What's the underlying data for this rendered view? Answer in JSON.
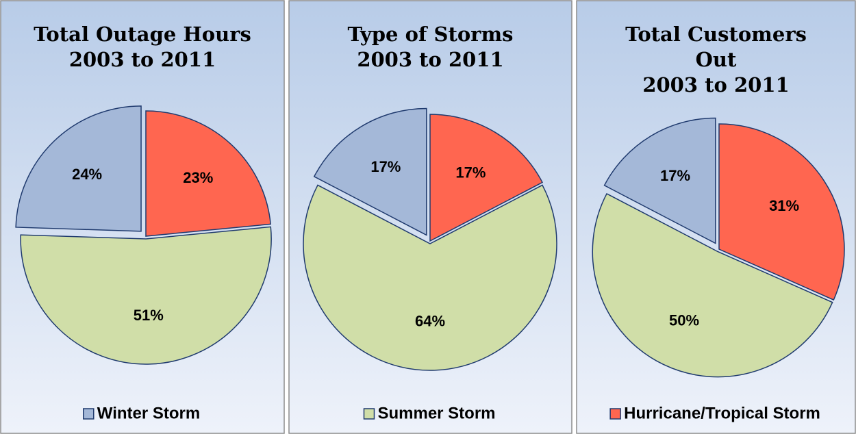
{
  "chart_data": [
    {
      "type": "pie",
      "title": [
        "Total Outage Hours",
        "2003 to 2011"
      ],
      "values": [
        23,
        51,
        24
      ],
      "value_labels": [
        "23%",
        "51%",
        "24%"
      ],
      "colors": [
        "#ff6650",
        "#d0dea8",
        "#a4b8d8"
      ]
    },
    {
      "type": "pie",
      "title": [
        "Type of Storms",
        "2003 to 2011"
      ],
      "values": [
        17,
        64,
        17
      ],
      "value_labels": [
        "17%",
        "64%",
        "17%"
      ],
      "colors": [
        "#ff6650",
        "#d0dea8",
        "#a4b8d8"
      ]
    },
    {
      "type": "pie",
      "title": [
        "Total Customers",
        "Out",
        "2003 to 2011"
      ],
      "values": [
        31,
        50,
        17
      ],
      "value_labels": [
        "31%",
        "50%",
        "17%"
      ],
      "colors": [
        "#ff6650",
        "#d0dea8",
        "#a4b8d8"
      ]
    }
  ],
  "legend": [
    {
      "name": "Winter Storm",
      "color": "#a4b8d8"
    },
    {
      "name": "Summer Storm",
      "color": "#d0dea8"
    },
    {
      "name": "Hurricane/Tropical Storm",
      "color": "#ff6650"
    }
  ]
}
